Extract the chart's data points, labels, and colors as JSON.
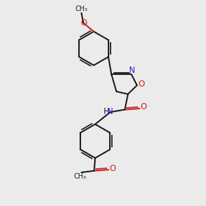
{
  "background_color": "#ebebeb",
  "bond_color": "#1a1a1a",
  "n_color": "#2020cc",
  "o_color": "#cc2020",
  "line_width": 1.5,
  "font_size_labels": 8.5,
  "fig_size": [
    3.0,
    3.0
  ],
  "dpi": 100,
  "xlim": [
    0,
    10
  ],
  "ylim": [
    0,
    10
  ]
}
